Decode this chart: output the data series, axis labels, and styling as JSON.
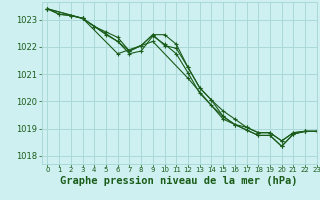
{
  "background_color": "#cef0f0",
  "grid_color": "#aad8d8",
  "line_color": "#1a5c1a",
  "xlabel": "Graphe pression niveau de la mer (hPa)",
  "xlabel_fontsize": 7.5,
  "xlim": [
    -0.5,
    23
  ],
  "ylim": [
    1017.7,
    1023.65
  ],
  "yticks": [
    1018,
    1019,
    1020,
    1021,
    1022,
    1023
  ],
  "xticks": [
    0,
    1,
    2,
    3,
    4,
    5,
    6,
    7,
    8,
    9,
    10,
    11,
    12,
    13,
    14,
    15,
    16,
    17,
    18,
    19,
    20,
    21,
    22,
    23
  ],
  "series": [
    {
      "x": [
        0,
        1,
        2,
        3,
        4,
        5,
        6,
        7,
        8,
        9,
        10,
        11,
        12,
        13,
        14,
        15,
        16,
        17,
        18,
        19,
        20,
        21,
        22,
        23
      ],
      "y": [
        1023.4,
        1023.2,
        1023.15,
        1023.05,
        1022.75,
        1022.55,
        1022.35,
        1021.85,
        1022.05,
        1022.45,
        1022.05,
        1021.95,
        1021.25,
        1020.5,
        1020.05,
        1019.65,
        1019.35,
        1019.05,
        1018.85,
        1018.85,
        1018.55,
        1018.85,
        1018.9,
        1018.9
      ],
      "marker": true,
      "markersize": 2.5
    },
    {
      "x": [
        0,
        1,
        2,
        3,
        4,
        5,
        6,
        7,
        8,
        9,
        10,
        11,
        12,
        13,
        14,
        15,
        16,
        17,
        18,
        19,
        20,
        21,
        22,
        23
      ],
      "y": [
        1023.4,
        1023.2,
        1023.15,
        1023.05,
        1022.75,
        1022.45,
        1022.2,
        1021.75,
        1021.85,
        1022.4,
        1022.1,
        1021.75,
        1021.05,
        1020.3,
        1019.85,
        1019.45,
        1019.15,
        1018.95,
        1018.75,
        1018.75,
        1018.35,
        1018.8,
        1018.9,
        1018.9
      ],
      "marker": true,
      "markersize": 2.5
    },
    {
      "x": [
        0,
        3,
        6,
        7,
        8,
        9,
        10,
        11,
        12,
        13,
        14,
        15,
        16,
        17,
        18,
        19,
        20,
        21,
        22,
        23
      ],
      "y": [
        1023.4,
        1023.05,
        1022.2,
        1021.85,
        1022.05,
        1022.45,
        1022.45,
        1022.1,
        1021.25,
        1020.5,
        1020.05,
        1019.45,
        1019.15,
        1019.05,
        1018.85,
        1018.85,
        1018.55,
        1018.85,
        1018.9,
        1018.9
      ],
      "marker": true,
      "markersize": 3.5
    },
    {
      "x": [
        0,
        3,
        6,
        9,
        12,
        15,
        18,
        19,
        20,
        21,
        22,
        23
      ],
      "y": [
        1023.4,
        1023.05,
        1021.75,
        1022.2,
        1020.85,
        1019.35,
        1018.75,
        1018.75,
        1018.35,
        1018.8,
        1018.9,
        1018.9
      ],
      "marker": true,
      "markersize": 3.5
    }
  ]
}
